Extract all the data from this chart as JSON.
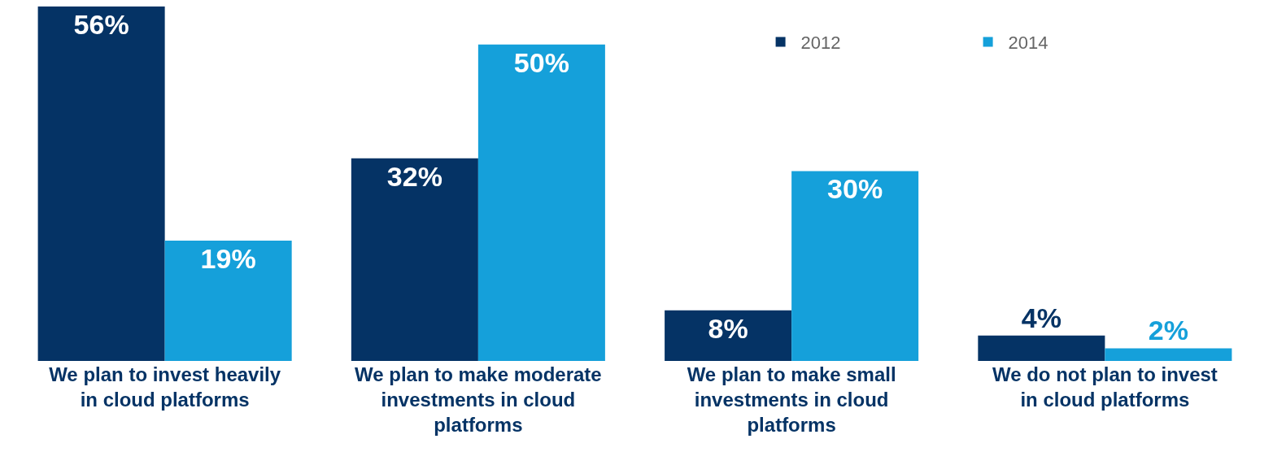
{
  "chart_data": {
    "type": "bar",
    "categories": [
      "We plan to invest heavily in cloud platforms",
      "We plan to make moderate investments in cloud platforms",
      "We plan to make small investments in cloud platforms",
      "We do not plan to invest in cloud platforms"
    ],
    "series": [
      {
        "name": "2012",
        "color": "#053365",
        "values": [
          56,
          32,
          8,
          4
        ],
        "value_labels": [
          "56%",
          "32%",
          "8%",
          "4%"
        ]
      },
      {
        "name": "2014",
        "color": "#15a0da",
        "values": [
          19,
          50,
          30,
          2
        ],
        "value_labels": [
          "19%",
          "50%",
          "30%",
          "2%"
        ]
      }
    ],
    "ylim": [
      0,
      56
    ],
    "tick_labels": "x",
    "legend": "top"
  }
}
